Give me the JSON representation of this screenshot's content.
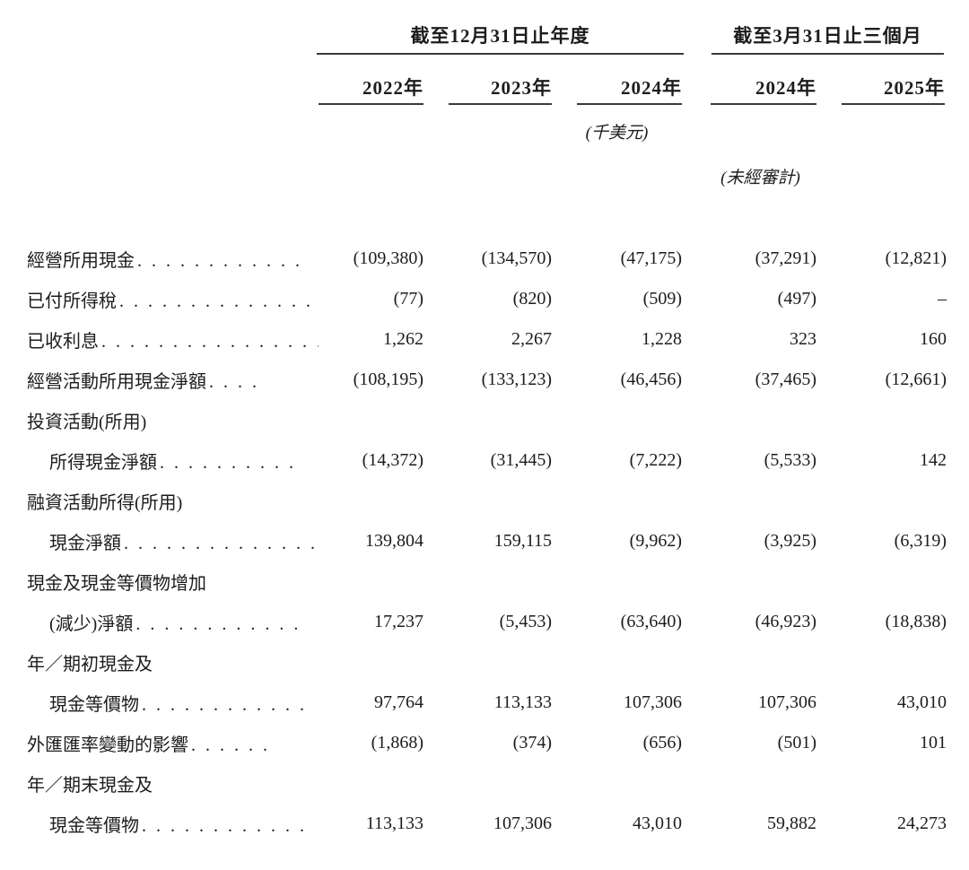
{
  "header": {
    "groups": [
      {
        "title": "截至12月31日止年度",
        "years": [
          "2022年",
          "2023年",
          "2024年"
        ]
      },
      {
        "title": "截至3月31日止三個月",
        "years": [
          "2024年",
          "2025年"
        ]
      }
    ],
    "unit_note": "(千美元)",
    "audit_note": "(未經審計)"
  },
  "rows": [
    {
      "label": "經營所用現金",
      "dots": "............",
      "indent": false,
      "values": [
        "(109,380)",
        "(134,570)",
        "(47,175)",
        "(37,291)",
        "(12,821)"
      ]
    },
    {
      "label": "已付所得稅",
      "dots": "..............",
      "indent": false,
      "values": [
        "(77)",
        "(820)",
        "(509)",
        "(497)",
        "–"
      ]
    },
    {
      "label": "已收利息",
      "dots": "................",
      "indent": false,
      "values": [
        "1,262",
        "2,267",
        "1,228",
        "323",
        "160"
      ]
    },
    {
      "label": "經營活動所用現金淨額",
      "dots": " ....",
      "indent": false,
      "values": [
        "(108,195)",
        "(133,123)",
        "(46,456)",
        "(37,465)",
        "(12,661)"
      ]
    },
    {
      "label": "投資活動(所用)",
      "dots": "",
      "indent": false,
      "values": [
        "",
        "",
        "",
        "",
        ""
      ]
    },
    {
      "label": "所得現金淨額",
      "dots": "..........",
      "indent": true,
      "values": [
        "(14,372)",
        "(31,445)",
        "(7,222)",
        "(5,533)",
        "142"
      ]
    },
    {
      "label": "融資活動所得(所用)",
      "dots": "",
      "indent": false,
      "values": [
        "",
        "",
        "",
        "",
        ""
      ]
    },
    {
      "label": "現金淨額",
      "dots": "..............",
      "indent": true,
      "values": [
        "139,804",
        "159,115",
        "(9,962)",
        "(3,925)",
        "(6,319)"
      ]
    },
    {
      "label": "現金及現金等價物增加",
      "dots": "",
      "indent": false,
      "values": [
        "",
        "",
        "",
        "",
        ""
      ]
    },
    {
      "label": "(減少)淨額",
      "dots": "............",
      "indent": true,
      "values": [
        "17,237",
        "(5,453)",
        "(63,640)",
        "(46,923)",
        "(18,838)"
      ]
    },
    {
      "label": "年／期初現金及",
      "dots": "",
      "indent": false,
      "values": [
        "",
        "",
        "",
        "",
        ""
      ]
    },
    {
      "label": "現金等價物",
      "dots": "............",
      "indent": true,
      "values": [
        "97,764",
        "113,133",
        "107,306",
        "107,306",
        "43,010"
      ]
    },
    {
      "label": "外匯匯率變動的影響",
      "dots": " ......",
      "indent": false,
      "values": [
        "(1,868)",
        "(374)",
        "(656)",
        "(501)",
        "101"
      ]
    },
    {
      "label": "年／期末現金及",
      "dots": "",
      "indent": false,
      "values": [
        "",
        "",
        "",
        "",
        ""
      ]
    },
    {
      "label": "現金等價物",
      "dots": "............",
      "indent": true,
      "values": [
        "113,133",
        "107,306",
        "43,010",
        "59,882",
        "24,273"
      ]
    }
  ]
}
